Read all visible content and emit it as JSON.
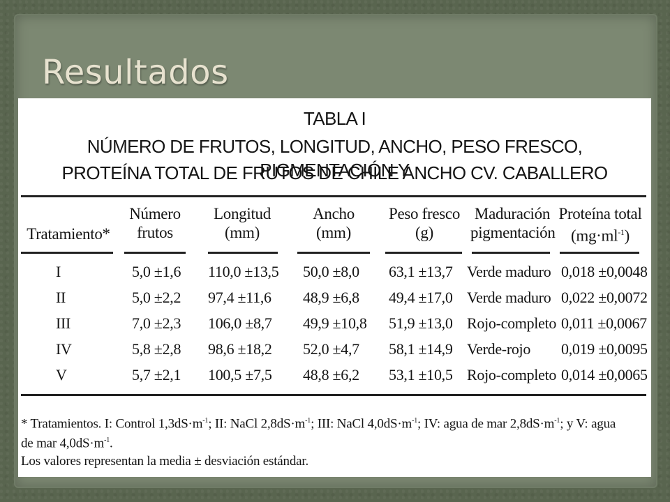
{
  "slide": {
    "title": "Resultados"
  },
  "table": {
    "label": "TABLA I",
    "caption_line1": "NÚMERO DE FRUTOS, LONGITUD, ANCHO, PESO FRESCO, PIGMENTACIÓN Y",
    "caption_line2": "PROTEÍNA TOTAL DE FRUTOS DE CHILE ANCHO CV. CABALLERO",
    "headers": {
      "tratamiento": "Tratamiento*",
      "numero_1": "Número",
      "numero_2": "frutos",
      "longitud_1": "Longitud",
      "longitud_2": "(mm)",
      "ancho_1": "Ancho",
      "ancho_2": "(mm)",
      "peso_1": "Peso fresco",
      "peso_2": "(g)",
      "maduracion_1": "Maduración",
      "maduracion_2": "pigmentación",
      "proteina_1": "Proteína total",
      "proteina_2": "(mg·ml",
      "proteina_sup": "-1",
      "proteina_close": ")"
    },
    "rows": [
      {
        "tratamiento": "I",
        "numero": "5,0 ±1,6",
        "longitud": "110,0 ±13,5",
        "ancho": "50,0 ±8,0",
        "peso": "63,1 ±13,7",
        "maduracion": "Verde maduro",
        "proteina": "0,018 ±0,0048"
      },
      {
        "tratamiento": "II",
        "numero": "5,0 ±2,2",
        "longitud": "97,4 ±11,6",
        "ancho": "48,9 ±6,8",
        "peso": "49,4 ±17,0",
        "maduracion": "Verde maduro",
        "proteina": "0,022 ±0,0072"
      },
      {
        "tratamiento": "III",
        "numero": "7,0 ±2,3",
        "longitud": "106,0 ±8,7",
        "ancho": "49,9 ±10,8",
        "peso": "51,9 ±13,0",
        "maduracion": "Rojo-completo",
        "proteina": "0,011 ±0,0067"
      },
      {
        "tratamiento": "IV",
        "numero": "5,8 ±2,8",
        "longitud": "98,6 ±18,2",
        "ancho": "52,0 ±4,7",
        "peso": "58,1 ±14,9",
        "maduracion": "Verde-rojo",
        "proteina": "0,019 ±0,0095"
      },
      {
        "tratamiento": "V",
        "numero": "5,7 ±2,1",
        "longitud": "100,5 ±7,5",
        "ancho": "48,8 ±6,2",
        "peso": "53,1 ±10,5",
        "maduracion": "Rojo-completo",
        "proteina": "0,014 ±0,0065"
      }
    ],
    "footnote": {
      "l1_a": "* Tratamientos. I: Control 1,3dS·m",
      "l1_b": "; II: NaCl 2,8dS·m",
      "l1_c": "; III: NaCl 4,0dS·m",
      "l1_d": "; IV: agua de mar 2,8dS·m",
      "l1_e": "; y V: agua",
      "l2_a": "de mar 4,0dS·m",
      "l2_b": ".",
      "sup": "-1",
      "line3": "Los valores representan la media ± desviación estándar."
    }
  }
}
